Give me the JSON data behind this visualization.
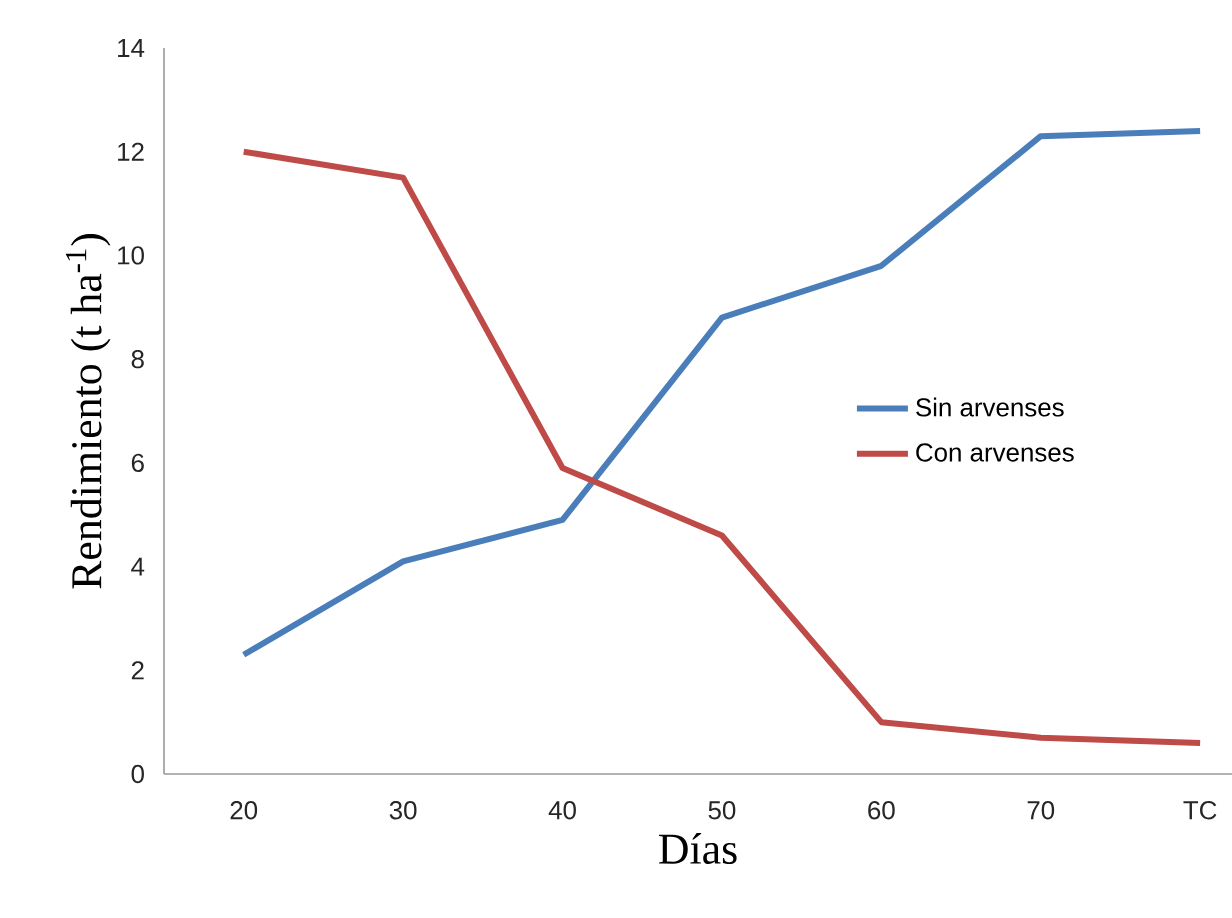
{
  "chart_data": {
    "type": "line",
    "xlabel": "Días",
    "ylabel": "Rendimiento (t ha$^{-1}$)",
    "categories": [
      "20",
      "30",
      "40",
      "50",
      "60",
      "70",
      "TC"
    ],
    "series": [
      {
        "name": "Sin arvenses",
        "color": "#4a7ebb",
        "values": [
          2.3,
          4.1,
          4.9,
          8.8,
          9.8,
          12.3,
          12.4
        ]
      },
      {
        "name": "Con arvenses",
        "color": "#be4b48",
        "values": [
          12.0,
          11.5,
          5.9,
          4.6,
          1.0,
          0.7,
          0.6
        ]
      }
    ],
    "ylim": [
      0,
      14
    ],
    "yticks": [
      0,
      2,
      4,
      6,
      8,
      10,
      12,
      14
    ],
    "grid": false,
    "legend": "right",
    "marker": "none",
    "line_style": "solid"
  }
}
